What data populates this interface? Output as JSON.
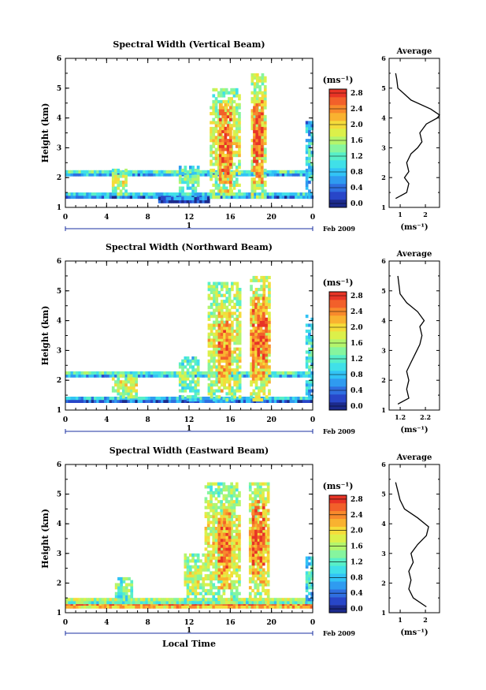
{
  "chart_data": [
    {
      "type": "heatmap",
      "title": "Spectral Width (Vertical Beam)",
      "ylabel": "Height (km)",
      "xlabel": "",
      "xlim": [
        0,
        24
      ],
      "ylim": [
        1,
        6
      ],
      "x_ticks": [
        "0",
        "4",
        "8",
        "12",
        "16",
        "20",
        "0"
      ],
      "y_ticks": [
        "1",
        "2",
        "3",
        "4",
        "5",
        "6"
      ],
      "date_axis": {
        "day_label": "1",
        "month_year": "Feb 2009"
      },
      "colorbar": {
        "unit": "(ms⁻¹)",
        "range": [
          0,
          3.0
        ],
        "tick_labels": [
          "0.0",
          "0.4",
          "0.8",
          "1.2",
          "1.6",
          "2.0",
          "2.4",
          "2.8"
        ]
      },
      "average_profile": {
        "title": "Average",
        "xlabel": "(ms⁻¹)",
        "x_ticks": [
          "1",
          "2"
        ],
        "y_ticks": [
          "1",
          "2",
          "3",
          "4",
          "5",
          "6"
        ],
        "height": [
          1.3,
          1.5,
          1.8,
          2.0,
          2.2,
          2.5,
          2.8,
          3.0,
          3.2,
          3.5,
          3.8,
          4.0,
          4.1,
          4.3,
          4.6,
          5.0,
          5.3,
          5.5
        ],
        "width": [
          1.0,
          1.5,
          1.6,
          1.4,
          1.6,
          1.5,
          1.7,
          2.0,
          2.2,
          2.1,
          2.4,
          2.9,
          3.0,
          2.6,
          1.7,
          1.1,
          1.05,
          1.0
        ]
      },
      "regions": [
        {
          "t0": 0,
          "t1": 24,
          "h0": 2.05,
          "h1": 2.25,
          "level": 1.3
        },
        {
          "t0": 0,
          "t1": 24,
          "h0": 1.3,
          "h1": 1.5,
          "level": 1.1
        },
        {
          "t0": 9,
          "t1": 14,
          "h0": 1.15,
          "h1": 1.35,
          "level": 0.6
        },
        {
          "t0": 4.5,
          "t1": 6,
          "h0": 1.4,
          "h1": 2.3,
          "level": 1.9
        },
        {
          "t0": 11,
          "t1": 13,
          "h0": 1.4,
          "h1": 2.4,
          "level": 1.5
        },
        {
          "t0": 14,
          "t1": 17,
          "h0": 1.3,
          "h1": 5.0,
          "level": 2.0
        },
        {
          "t0": 14.9,
          "t1": 16,
          "h0": 1.5,
          "h1": 4.6,
          "level": 2.7
        },
        {
          "t0": 18,
          "t1": 19.5,
          "h0": 1.3,
          "h1": 5.5,
          "level": 2.1
        },
        {
          "t0": 18.2,
          "t1": 19.2,
          "h0": 1.8,
          "h1": 4.6,
          "level": 2.8
        },
        {
          "t0": 23.3,
          "t1": 24,
          "h0": 1.3,
          "h1": 3.9,
          "level": 1.2
        }
      ]
    },
    {
      "type": "heatmap",
      "title": "Spectral Width (Northward Beam)",
      "ylabel": "Height (km)",
      "xlabel": "",
      "xlim": [
        0,
        24
      ],
      "ylim": [
        1,
        6
      ],
      "x_ticks": [
        "0",
        "4",
        "8",
        "12",
        "16",
        "20",
        "0"
      ],
      "y_ticks": [
        "1",
        "2",
        "3",
        "4",
        "5",
        "6"
      ],
      "date_axis": {
        "day_label": "1",
        "month_year": "Feb 2009"
      },
      "colorbar": {
        "unit": "(ms⁻¹)",
        "range": [
          0,
          3.0
        ],
        "tick_labels": [
          "0.0",
          "0.4",
          "0.8",
          "1.2",
          "1.6",
          "2.0",
          "2.4",
          "2.8"
        ]
      },
      "average_profile": {
        "title": "Average",
        "xlabel": "(ms⁻¹)",
        "x_ticks": [
          "1.2",
          "2.2"
        ],
        "y_ticks": [
          "1",
          "2",
          "3",
          "4",
          "5",
          "6"
        ],
        "height": [
          1.2,
          1.4,
          1.7,
          2.0,
          2.3,
          2.6,
          2.9,
          3.2,
          3.5,
          3.8,
          4.0,
          4.3,
          4.6,
          4.9,
          5.2,
          5.5
        ],
        "width": [
          1.1,
          1.6,
          1.5,
          1.6,
          1.5,
          1.7,
          1.9,
          2.1,
          2.2,
          2.1,
          2.3,
          2.0,
          1.5,
          1.2,
          1.15,
          1.1
        ]
      },
      "regions": [
        {
          "t0": 0,
          "t1": 24,
          "h0": 2.1,
          "h1": 2.3,
          "level": 1.3
        },
        {
          "t0": 0,
          "t1": 24,
          "h0": 1.25,
          "h1": 1.45,
          "level": 1.0
        },
        {
          "t0": 4.5,
          "t1": 7,
          "h0": 1.4,
          "h1": 2.2,
          "level": 2.0
        },
        {
          "t0": 11,
          "t1": 13,
          "h0": 1.3,
          "h1": 2.8,
          "level": 1.6
        },
        {
          "t0": 13.8,
          "t1": 17,
          "h0": 1.3,
          "h1": 5.3,
          "level": 2.0
        },
        {
          "t0": 14.8,
          "t1": 16,
          "h0": 1.6,
          "h1": 4.5,
          "level": 2.6
        },
        {
          "t0": 17.9,
          "t1": 19.8,
          "h0": 1.3,
          "h1": 5.5,
          "level": 2.2
        },
        {
          "t0": 18.1,
          "t1": 19.4,
          "h0": 2.0,
          "h1": 4.8,
          "level": 2.8
        },
        {
          "t0": 23.3,
          "t1": 24,
          "h0": 1.4,
          "h1": 4.2,
          "level": 1.3
        }
      ]
    },
    {
      "type": "heatmap",
      "title": "Spectral Width (Eastward Beam)",
      "ylabel": "Height (km)",
      "xlabel": "Local Time",
      "xlim": [
        0,
        24
      ],
      "ylim": [
        1,
        6
      ],
      "x_ticks": [
        "0",
        "4",
        "8",
        "12",
        "16",
        "20",
        "0"
      ],
      "y_ticks": [
        "1",
        "2",
        "3",
        "4",
        "5",
        "6"
      ],
      "date_axis": {
        "day_label": "1",
        "month_year": "Feb 2009"
      },
      "colorbar": {
        "unit": "(ms⁻¹)",
        "range": [
          0,
          3.0
        ],
        "tick_labels": [
          "0.0",
          "0.4",
          "0.8",
          "1.2",
          "1.6",
          "2.0",
          "2.4",
          "2.8"
        ]
      },
      "average_profile": {
        "title": "Average",
        "xlabel": "(ms⁻¹)",
        "x_ticks": [
          "1",
          "2"
        ],
        "y_ticks": [
          "1",
          "2",
          "3",
          "4",
          "5",
          "6"
        ],
        "height": [
          1.2,
          1.5,
          1.8,
          2.1,
          2.4,
          2.7,
          3.0,
          3.3,
          3.6,
          3.9,
          4.2,
          4.5,
          4.8,
          5.1,
          5.4
        ],
        "width": [
          2.4,
          1.8,
          1.6,
          1.7,
          1.6,
          1.8,
          1.7,
          2.0,
          2.4,
          2.5,
          2.0,
          1.4,
          1.2,
          1.1,
          1.0
        ]
      },
      "regions": [
        {
          "t0": 0,
          "t1": 24,
          "h0": 1.15,
          "h1": 1.3,
          "level": 2.7
        },
        {
          "t0": 0,
          "t1": 24,
          "h0": 1.3,
          "h1": 1.5,
          "level": 1.8
        },
        {
          "t0": 4.8,
          "t1": 6.5,
          "h0": 1.4,
          "h1": 2.2,
          "level": 1.6
        },
        {
          "t0": 11.5,
          "t1": 13.5,
          "h0": 1.3,
          "h1": 3.0,
          "level": 1.9
        },
        {
          "t0": 13.5,
          "t1": 17,
          "h0": 1.3,
          "h1": 5.4,
          "level": 2.0
        },
        {
          "t0": 14.8,
          "t1": 16,
          "h0": 1.8,
          "h1": 4.5,
          "level": 2.7
        },
        {
          "t0": 17.8,
          "t1": 19.8,
          "h0": 1.3,
          "h1": 5.4,
          "level": 2.2
        },
        {
          "t0": 18.1,
          "t1": 19.3,
          "h0": 2.0,
          "h1": 4.8,
          "level": 2.8
        },
        {
          "t0": 23.3,
          "t1": 24,
          "h0": 1.4,
          "h1": 3.0,
          "level": 1.3
        }
      ]
    }
  ]
}
